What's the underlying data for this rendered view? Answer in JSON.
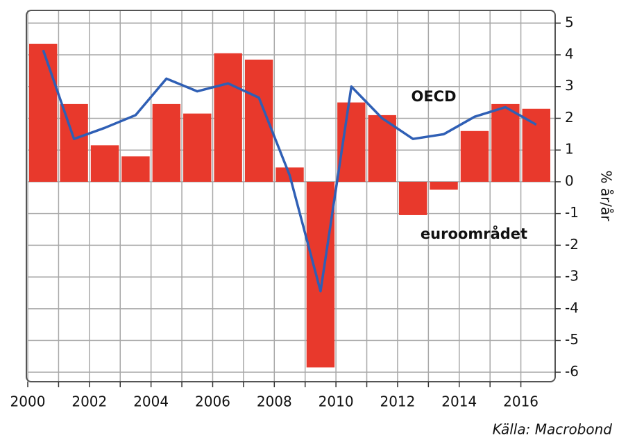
{
  "chart_data": {
    "type": "bar-line",
    "x": [
      2000,
      2001,
      2002,
      2003,
      2004,
      2005,
      2006,
      2007,
      2008,
      2009,
      2010,
      2011,
      2012,
      2013,
      2014,
      2015,
      2016
    ],
    "series": [
      {
        "name": "euroområdet",
        "type": "bar",
        "color": "#e8392c",
        "values": [
          4.35,
          2.45,
          1.15,
          0.8,
          2.45,
          2.15,
          4.05,
          3.85,
          0.45,
          -5.85,
          2.5,
          2.1,
          -1.05,
          -0.25,
          1.6,
          2.45,
          2.3
        ]
      },
      {
        "name": "OECD",
        "type": "line",
        "color": "#2f5fb5",
        "values": [
          4.15,
          1.35,
          1.7,
          2.1,
          3.25,
          2.85,
          3.1,
          2.65,
          0.2,
          -3.45,
          3.0,
          2.0,
          1.35,
          1.5,
          2.05,
          2.35,
          1.8
        ]
      }
    ],
    "ylabel": "% år/år",
    "source": "Källa: Macrobond",
    "xlim": [
      2000,
      2017
    ],
    "xticks": [
      2000,
      2002,
      2004,
      2006,
      2008,
      2010,
      2012,
      2014,
      2016
    ],
    "xminorticks": [
      2001,
      2003,
      2005,
      2007,
      2009,
      2011,
      2013,
      2015
    ],
    "ylim": [
      -6.3,
      5.4
    ],
    "yticks": [
      5,
      4,
      3,
      2,
      1,
      0,
      -1,
      -2,
      -3,
      -4,
      -5,
      -6
    ],
    "yaxis_side": "right",
    "grid": true
  }
}
